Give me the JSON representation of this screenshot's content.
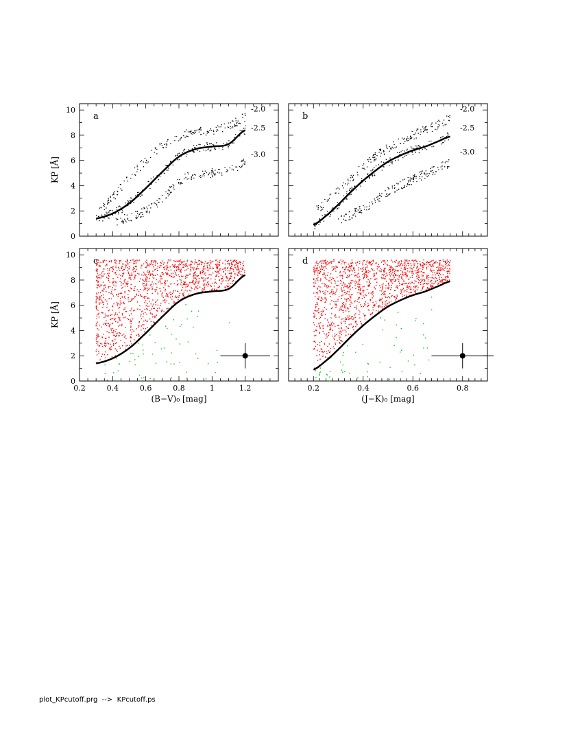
{
  "chart_data": [
    {
      "panel": "a",
      "type": "scatter",
      "xlim": [
        0.2,
        1.4
      ],
      "ylim": [
        0,
        10.5
      ],
      "xticks": [],
      "xlabel": "",
      "ylabel": "KP [Å]",
      "yticks": [
        "0",
        "2",
        "4",
        "6",
        "8",
        "10"
      ],
      "curve_labels": [
        "-2.0",
        "-2.5",
        "-3.0"
      ],
      "main_curve": {
        "x": [
          0.3,
          0.4,
          0.5,
          0.6,
          0.7,
          0.8,
          0.9,
          1.0,
          1.1,
          1.2
        ],
        "y": [
          1.4,
          1.8,
          2.6,
          3.8,
          5.1,
          6.3,
          6.9,
          7.1,
          7.3,
          8.4
        ]
      },
      "sample_sequences": [
        {
          "name": "-2.0",
          "x": [
            0.32,
            0.4,
            0.5,
            0.6,
            0.7,
            0.8,
            0.9,
            1.0,
            1.1,
            1.2
          ],
          "y": [
            2.2,
            3.1,
            4.6,
            6.0,
            7.2,
            7.9,
            8.3,
            8.4,
            8.7,
            9.4
          ]
        },
        {
          "name": "-3.0",
          "x": [
            0.42,
            0.5,
            0.6,
            0.7,
            0.8,
            0.9,
            1.0,
            1.1,
            1.2
          ],
          "y": [
            1.2,
            1.5,
            2.0,
            3.0,
            4.3,
            4.9,
            5.0,
            5.2,
            5.8
          ]
        }
      ]
    },
    {
      "panel": "b",
      "type": "scatter",
      "xlim": [
        0.1,
        0.9
      ],
      "ylim": [
        0,
        10.5
      ],
      "xticks": [],
      "xlabel": "",
      "ylabel": "",
      "yticks": [],
      "curve_labels": [
        "-2.0",
        "-2.5",
        "-3.0"
      ],
      "main_curve": {
        "x": [
          0.2,
          0.25,
          0.3,
          0.35,
          0.4,
          0.45,
          0.5,
          0.55,
          0.6,
          0.65,
          0.7,
          0.75
        ],
        "y": [
          0.9,
          1.6,
          2.5,
          3.5,
          4.4,
          5.2,
          5.9,
          6.4,
          6.8,
          7.1,
          7.5,
          7.9
        ]
      },
      "sample_sequences": [
        {
          "name": "-2.0",
          "x": [
            0.2,
            0.3,
            0.4,
            0.5,
            0.6,
            0.7,
            0.75
          ],
          "y": [
            2.0,
            3.6,
            5.5,
            7.0,
            8.0,
            8.8,
            9.3
          ]
        },
        {
          "name": "-3.0",
          "x": [
            0.3,
            0.4,
            0.5,
            0.6,
            0.7,
            0.75
          ],
          "y": [
            1.3,
            2.2,
            3.5,
            4.5,
            5.3,
            5.8
          ]
        }
      ]
    },
    {
      "panel": "c",
      "type": "scatter",
      "xlim": [
        0.2,
        1.4
      ],
      "ylim": [
        0,
        10.5
      ],
      "xticks": [
        "0.2",
        "0.4",
        "0.6",
        "0.8",
        "1",
        "1.2"
      ],
      "xlabel": "(B−V)₀ [mag]",
      "ylabel": "KP [Å]",
      "yticks": [
        "0",
        "2",
        "4",
        "6",
        "8",
        "10"
      ],
      "main_curve": {
        "x": [
          0.3,
          0.4,
          0.5,
          0.6,
          0.7,
          0.8,
          0.9,
          1.0,
          1.1,
          1.2
        ],
        "y": [
          1.4,
          1.8,
          2.6,
          3.8,
          5.1,
          6.3,
          6.9,
          7.1,
          7.3,
          8.4
        ]
      },
      "point_colors": {
        "above_cutoff": "#ff0000",
        "below_cutoff": "#00cc00"
      },
      "error_bar": {
        "x": 1.2,
        "y": 2.0,
        "xerr": 0.06,
        "yerr": 1.0
      }
    },
    {
      "panel": "d",
      "type": "scatter",
      "xlim": [
        0.1,
        0.9
      ],
      "ylim": [
        0,
        10.5
      ],
      "xticks": [
        "0.2",
        "0.4",
        "0.6",
        "0.8"
      ],
      "xlabel": "(J−K)₀ [mag]",
      "ylabel": "",
      "yticks": [],
      "main_curve": {
        "x": [
          0.2,
          0.25,
          0.3,
          0.35,
          0.4,
          0.45,
          0.5,
          0.55,
          0.6,
          0.65,
          0.7,
          0.75
        ],
        "y": [
          0.9,
          1.6,
          2.5,
          3.5,
          4.4,
          5.2,
          5.9,
          6.4,
          6.8,
          7.1,
          7.5,
          7.9
        ]
      },
      "point_colors": {
        "above_cutoff": "#ff0000",
        "below_cutoff": "#00cc00"
      },
      "error_bar": {
        "x": 0.8,
        "y": 2.0,
        "xerr": 0.05,
        "yerr": 1.0
      }
    }
  ],
  "footer": "plot_KPcutoff.prg  -->  KPcutoff.ps"
}
